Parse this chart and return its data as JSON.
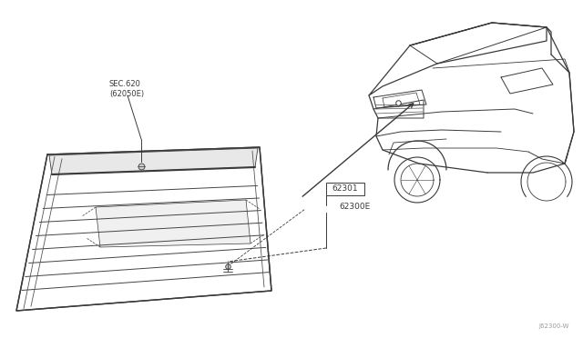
{
  "bg_color": "#ffffff",
  "line_color": "#3a3a3a",
  "fig_width": 6.4,
  "fig_height": 3.72,
  "dpi": 100,
  "watermark": "J62300-W",
  "label_sec": "SEC.620\n(62050E)",
  "label_62301": "62301",
  "label_62300e": "62300E"
}
